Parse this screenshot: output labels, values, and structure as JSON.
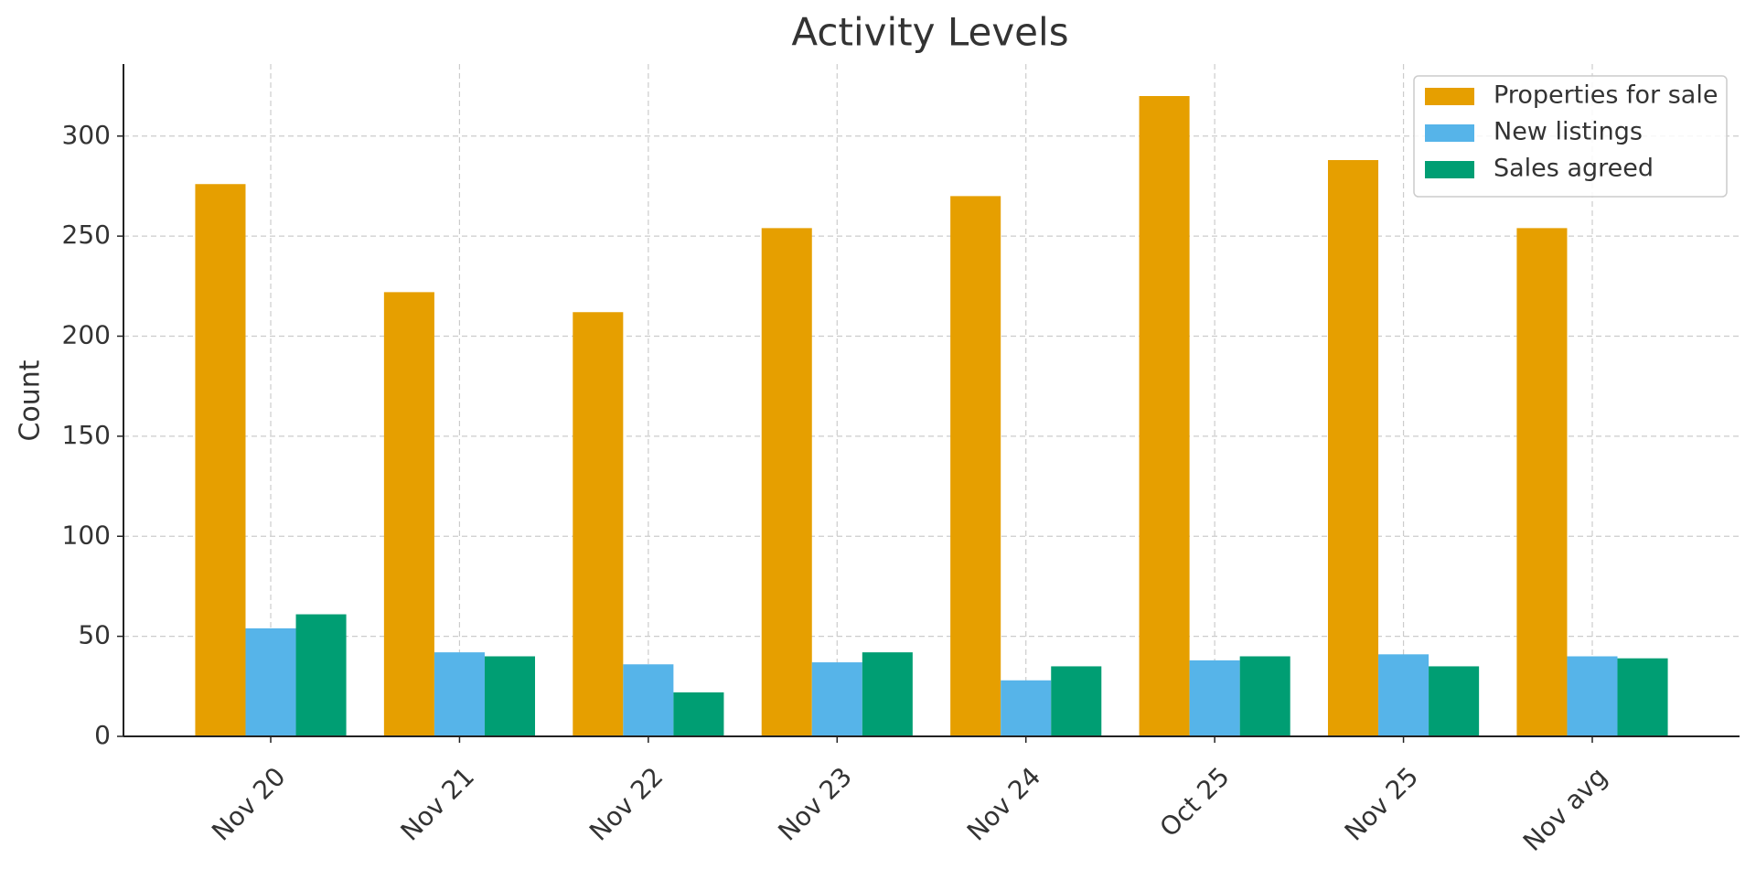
{
  "chart_data": {
    "type": "bar",
    "title": "Activity Levels",
    "y_label": "Count",
    "categories": [
      "Nov 20",
      "Nov 21",
      "Nov 22",
      "Nov 23",
      "Nov 24",
      "Oct 25",
      "Nov 25",
      "Nov avg"
    ],
    "series": [
      {
        "name": "Properties for sale",
        "color": "#E69F00",
        "values": [
          276,
          222,
          212,
          254,
          270,
          320,
          288,
          254
        ]
      },
      {
        "name": "New listings",
        "color": "#56B4E9",
        "values": [
          54,
          42,
          36,
          37,
          28,
          38,
          41,
          40
        ]
      },
      {
        "name": "Sales agreed",
        "color": "#009E73",
        "values": [
          61,
          40,
          22,
          42,
          35,
          40,
          35,
          39
        ]
      }
    ],
    "ylim": [
      0,
      336
    ],
    "yticks": [
      0,
      50,
      100,
      150,
      200,
      250,
      300
    ],
    "grid": true,
    "legend": "upper right"
  }
}
